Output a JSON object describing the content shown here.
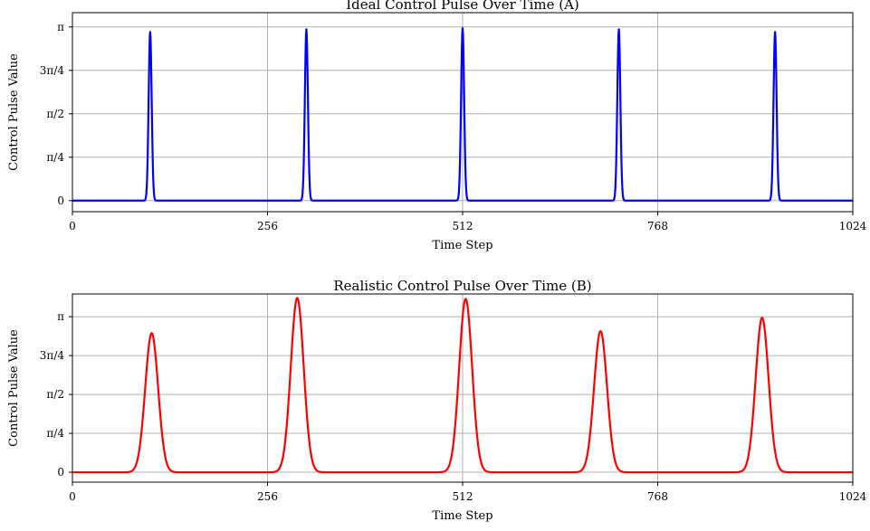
{
  "chart_data": [
    {
      "type": "line",
      "title": "Ideal Control Pulse Over Time (A)",
      "xlabel": "Time Step",
      "ylabel": "Control Pulse Value",
      "xlim": [
        0,
        1024
      ],
      "ylim": [
        -0.2,
        3.4
      ],
      "xticks": [
        0,
        256,
        512,
        768,
        1024
      ],
      "xtick_labels": [
        "0",
        "256",
        "512",
        "768",
        "1024"
      ],
      "yticks": [
        0,
        0.7854,
        1.5708,
        2.3562,
        3.1416
      ],
      "ytick_labels": [
        "0",
        "π/4",
        "π/2",
        "3π/4",
        "π"
      ],
      "grid": true,
      "series": [
        {
          "color": "#0000ff",
          "pulse_shape": "gaussian",
          "pulses": [
            {
              "center": 102,
              "peak": 3.05,
              "width": 2.0
            },
            {
              "center": 307,
              "peak": 3.1,
              "width": 2.0
            },
            {
              "center": 512,
              "peak": 3.12,
              "width": 2.0
            },
            {
              "center": 717,
              "peak": 3.1,
              "width": 2.0
            },
            {
              "center": 922,
              "peak": 3.05,
              "width": 2.0
            }
          ]
        }
      ]
    },
    {
      "type": "line",
      "title": "Realistic Control Pulse Over Time (B)",
      "xlabel": "Time Step",
      "ylabel": "Control Pulse Value",
      "xlim": [
        0,
        1024
      ],
      "ylim": [
        -0.2,
        3.6
      ],
      "xticks": [
        0,
        256,
        512,
        768,
        1024
      ],
      "xtick_labels": [
        "0",
        "256",
        "512",
        "768",
        "1024"
      ],
      "yticks": [
        0,
        0.7854,
        1.5708,
        2.3562,
        3.1416
      ],
      "ytick_labels": [
        "0",
        "π/4",
        "π/2",
        "3π/4",
        "π"
      ],
      "grid": true,
      "series": [
        {
          "color": "#ff0000",
          "pulse_shape": "gaussian",
          "pulses": [
            {
              "center": 104,
              "peak": 2.81,
              "width": 8.5
            },
            {
              "center": 295,
              "peak": 3.52,
              "width": 8.5
            },
            {
              "center": 516,
              "peak": 3.5,
              "width": 8.5
            },
            {
              "center": 693,
              "peak": 2.85,
              "width": 8.5
            },
            {
              "center": 905,
              "peak": 3.12,
              "width": 8.5
            }
          ]
        }
      ]
    }
  ]
}
